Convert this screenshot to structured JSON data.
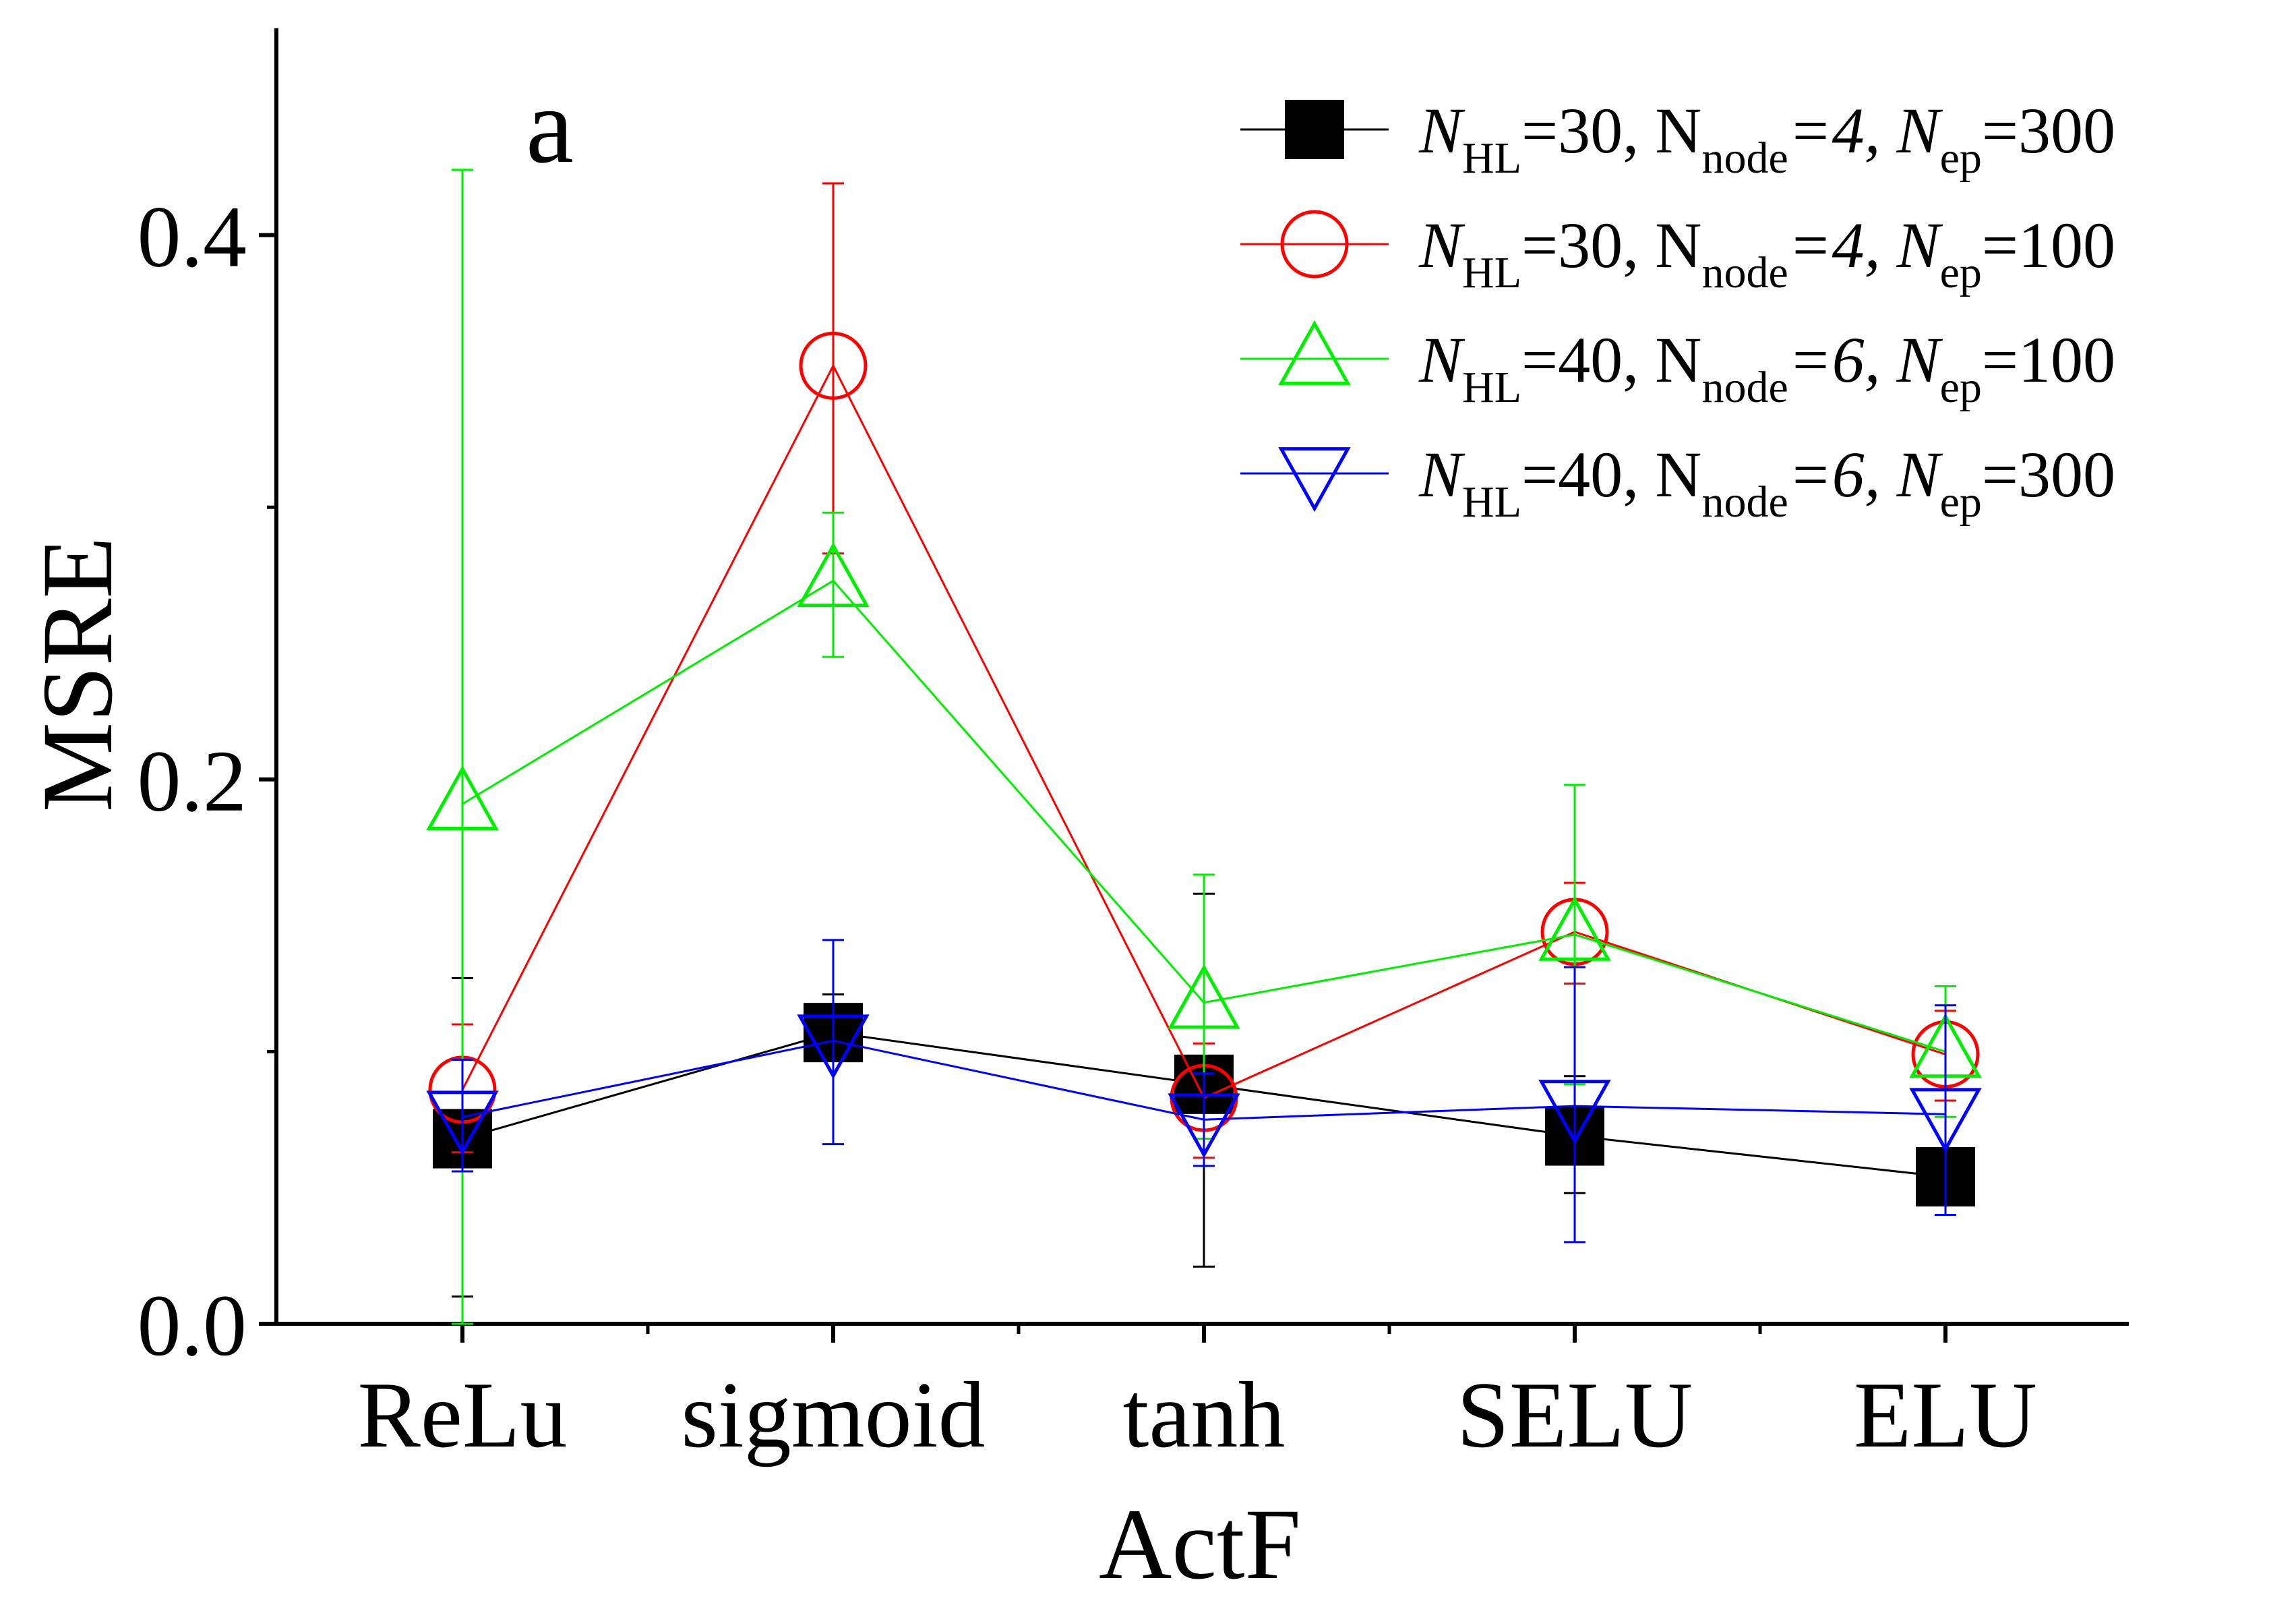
{
  "chart_data": {
    "type": "line",
    "panel_label": "a",
    "xlabel": "ActF",
    "ylabel": "MSRE",
    "categories": [
      "ReLu",
      "sigmoid",
      "tanh",
      "SELU",
      "ELU"
    ],
    "ylim": [
      0,
      0.48
    ],
    "yticks": [
      0.0,
      0.2,
      0.4
    ],
    "ytick_labels": [
      "0.0",
      "0.2",
      "0.4"
    ],
    "legend_position": "top-right",
    "series": [
      {
        "color": "#000000",
        "marker": "filled-square",
        "legend": {
          "p1": "N",
          "s1": "HL",
          "p2": "=30, N",
          "s2": "node",
          "p3": "=4, N",
          "s3": "ep",
          "p4": "=300"
        },
        "values": [
          0.068,
          0.107,
          0.088,
          0.069,
          0.054
        ],
        "err_low": [
          0.01,
          0.097,
          0.021,
          0.048,
          0.044
        ],
        "err_high": [
          0.127,
          0.121,
          0.158,
          0.091,
          0.064
        ]
      },
      {
        "color": "#ff0000",
        "marker": "open-circle",
        "legend": {
          "p1": "N",
          "s1": "HL",
          "p2": "=30, N",
          "s2": "node",
          "p3": "=4, N",
          "s3": "ep",
          "p4": "=100"
        },
        "values": [
          0.086,
          0.352,
          0.083,
          0.144,
          0.099
        ],
        "err_low": [
          0.063,
          0.283,
          0.061,
          0.125,
          0.082
        ],
        "err_high": [
          0.11,
          0.419,
          0.103,
          0.162,
          0.115
        ]
      },
      {
        "color": "#00ee00",
        "marker": "open-triangle-up",
        "legend": {
          "p1": "N",
          "s1": "HL",
          "p2": "=40, N",
          "s2": "node",
          "p3": "=6, N",
          "s3": "ep",
          "p4": "=100"
        },
        "values": [
          0.191,
          0.273,
          0.118,
          0.143,
          0.1
        ],
        "err_low": [
          0.0,
          0.245,
          0.068,
          0.088,
          0.076
        ],
        "err_high": [
          0.424,
          0.298,
          0.165,
          0.198,
          0.124
        ]
      },
      {
        "color": "#0000ff",
        "marker": "open-triangle-down",
        "legend": {
          "p1": "N",
          "s1": "HL",
          "p2": "=40, N",
          "s2": "node",
          "p3": "=6, N",
          "s3": "ep",
          "p4": "=300"
        },
        "values": [
          0.076,
          0.104,
          0.075,
          0.08,
          0.077
        ],
        "err_low": [
          0.056,
          0.066,
          0.058,
          0.03,
          0.04
        ],
        "err_high": [
          0.097,
          0.141,
          0.092,
          0.131,
          0.117
        ]
      }
    ]
  }
}
